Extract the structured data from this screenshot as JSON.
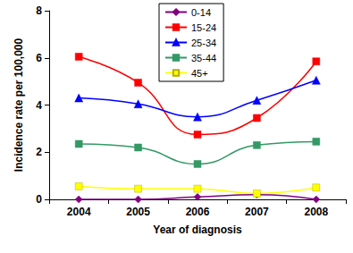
{
  "chart_data": {
    "type": "line",
    "x_label": "Year of diagnosis",
    "y_label": "Incidence rate per 100,000",
    "categories": [
      "2004",
      "2005",
      "2006",
      "2007",
      "2008"
    ],
    "series": [
      {
        "name": "0-14",
        "color": "#800080",
        "marker": "diamond",
        "line_style": "smooth",
        "values": [
          0,
          0,
          0.1,
          0.2,
          0
        ]
      },
      {
        "name": "15-24",
        "color": "#ff0000",
        "marker": "square",
        "line_style": "smooth",
        "values": [
          6.05,
          4.95,
          2.75,
          3.45,
          5.85
        ]
      },
      {
        "name": "25-34",
        "color": "#0000ff",
        "marker": "triangle",
        "line_style": "smooth",
        "values": [
          4.3,
          4.05,
          3.5,
          4.2,
          5.05
        ]
      },
      {
        "name": "35-44",
        "color": "#339966",
        "marker": "square",
        "line_style": "smooth",
        "values": [
          2.35,
          2.2,
          1.5,
          2.3,
          2.45
        ]
      },
      {
        "name": "45+",
        "color": "#ffff00",
        "marker": "square",
        "line_style": "smooth",
        "values": [
          0.55,
          0.45,
          0.45,
          0.25,
          0.5
        ]
      }
    ],
    "ylim": [
      0,
      8
    ],
    "yticks": [
      0,
      2,
      4,
      6,
      8
    ],
    "grid": false,
    "legend": "top"
  }
}
